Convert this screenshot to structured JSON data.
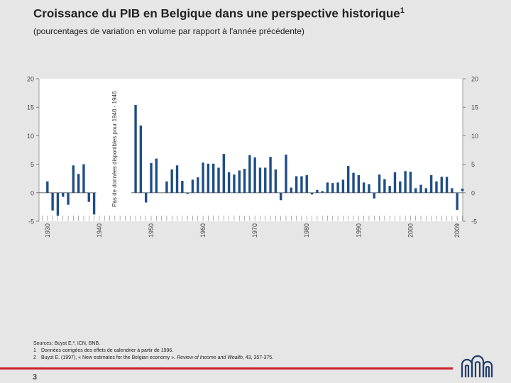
{
  "header": {
    "title": "Croissance du PIB en Belgique dans une perspective historique",
    "title_sup": "1",
    "subtitle": "(pourcentages de variation en volume par rapport à l'année précédente)"
  },
  "chart_data": {
    "type": "bar",
    "title": "Croissance du PIB en Belgique dans une perspective historique",
    "xlabel": "",
    "ylabel": "",
    "ylim": [
      -5,
      20
    ],
    "yticks": [
      -5,
      0,
      5,
      10,
      15,
      20
    ],
    "xlim": [
      1929,
      2010
    ],
    "xticks": [
      1930,
      1940,
      1950,
      1960,
      1970,
      1980,
      1990,
      2000,
      2009
    ],
    "gap_annotation": "Pas de données disponibles pour 1940 - 1946",
    "gap_range": [
      1940,
      1946
    ],
    "series_color": "#1f4e87",
    "data": [
      {
        "year": 1930,
        "value": 2.0
      },
      {
        "year": 1931,
        "value": -3.1
      },
      {
        "year": 1932,
        "value": -4.0
      },
      {
        "year": 1933,
        "value": -0.7
      },
      {
        "year": 1934,
        "value": -2.1
      },
      {
        "year": 1935,
        "value": 4.8
      },
      {
        "year": 1936,
        "value": 3.3
      },
      {
        "year": 1937,
        "value": 5.0
      },
      {
        "year": 1938,
        "value": -1.6
      },
      {
        "year": 1939,
        "value": -3.8
      },
      {
        "year": 1947,
        "value": 15.4
      },
      {
        "year": 1948,
        "value": 11.8
      },
      {
        "year": 1949,
        "value": -1.7
      },
      {
        "year": 1950,
        "value": 5.2
      },
      {
        "year": 1951,
        "value": 6.0
      },
      {
        "year": 1953,
        "value": 2.0
      },
      {
        "year": 1954,
        "value": 4.1
      },
      {
        "year": 1955,
        "value": 4.8
      },
      {
        "year": 1956,
        "value": 2.1
      },
      {
        "year": 1957,
        "value": -0.2
      },
      {
        "year": 1958,
        "value": 2.3
      },
      {
        "year": 1959,
        "value": 2.7
      },
      {
        "year": 1960,
        "value": 5.3
      },
      {
        "year": 1961,
        "value": 5.1
      },
      {
        "year": 1962,
        "value": 5.1
      },
      {
        "year": 1963,
        "value": 4.4
      },
      {
        "year": 1964,
        "value": 6.8
      },
      {
        "year": 1965,
        "value": 3.6
      },
      {
        "year": 1966,
        "value": 3.2
      },
      {
        "year": 1967,
        "value": 3.9
      },
      {
        "year": 1968,
        "value": 4.2
      },
      {
        "year": 1969,
        "value": 6.6
      },
      {
        "year": 1970,
        "value": 6.2
      },
      {
        "year": 1971,
        "value": 4.4
      },
      {
        "year": 1972,
        "value": 4.4
      },
      {
        "year": 1973,
        "value": 6.3
      },
      {
        "year": 1974,
        "value": 4.1
      },
      {
        "year": 1975,
        "value": -1.3
      },
      {
        "year": 1976,
        "value": 6.7
      },
      {
        "year": 1977,
        "value": 0.9
      },
      {
        "year": 1978,
        "value": 2.9
      },
      {
        "year": 1979,
        "value": 2.9
      },
      {
        "year": 1980,
        "value": 3.1
      },
      {
        "year": 1981,
        "value": -0.3
      },
      {
        "year": 1982,
        "value": 0.5
      },
      {
        "year": 1983,
        "value": 0.3
      },
      {
        "year": 1984,
        "value": 1.8
      },
      {
        "year": 1985,
        "value": 1.7
      },
      {
        "year": 1986,
        "value": 1.8
      },
      {
        "year": 1987,
        "value": 2.3
      },
      {
        "year": 1988,
        "value": 4.7
      },
      {
        "year": 1989,
        "value": 3.5
      },
      {
        "year": 1990,
        "value": 3.1
      },
      {
        "year": 1991,
        "value": 1.8
      },
      {
        "year": 1992,
        "value": 1.5
      },
      {
        "year": 1993,
        "value": -1.0
      },
      {
        "year": 1994,
        "value": 3.2
      },
      {
        "year": 1995,
        "value": 2.4
      },
      {
        "year": 1996,
        "value": 1.2
      },
      {
        "year": 1997,
        "value": 3.6
      },
      {
        "year": 1998,
        "value": 2.0
      },
      {
        "year": 1999,
        "value": 3.8
      },
      {
        "year": 2000,
        "value": 3.7
      },
      {
        "year": 2001,
        "value": 0.8
      },
      {
        "year": 2002,
        "value": 1.4
      },
      {
        "year": 2003,
        "value": 0.8
      },
      {
        "year": 2004,
        "value": 3.1
      },
      {
        "year": 2005,
        "value": 2.0
      },
      {
        "year": 2006,
        "value": 2.8
      },
      {
        "year": 2007,
        "value": 2.8
      },
      {
        "year": 2008,
        "value": 0.8
      },
      {
        "year": 2009,
        "value": -3.0
      },
      {
        "year": 2010,
        "value": 0.5,
        "marker": "dot"
      }
    ]
  },
  "footer": {
    "sources_label": "Sources: Buyst E.², ICN, BNB.",
    "footnotes": [
      {
        "num": "1",
        "text": "Données corrigées des effets de calendrier à partir de 1996."
      },
      {
        "num": "2",
        "text": "Buyst E. (1997), « New estimates for the Belgian economy ».",
        "italic": "Review of Income and Wealth",
        "tail": ", 43, 357-375."
      }
    ],
    "page_number": "3"
  }
}
